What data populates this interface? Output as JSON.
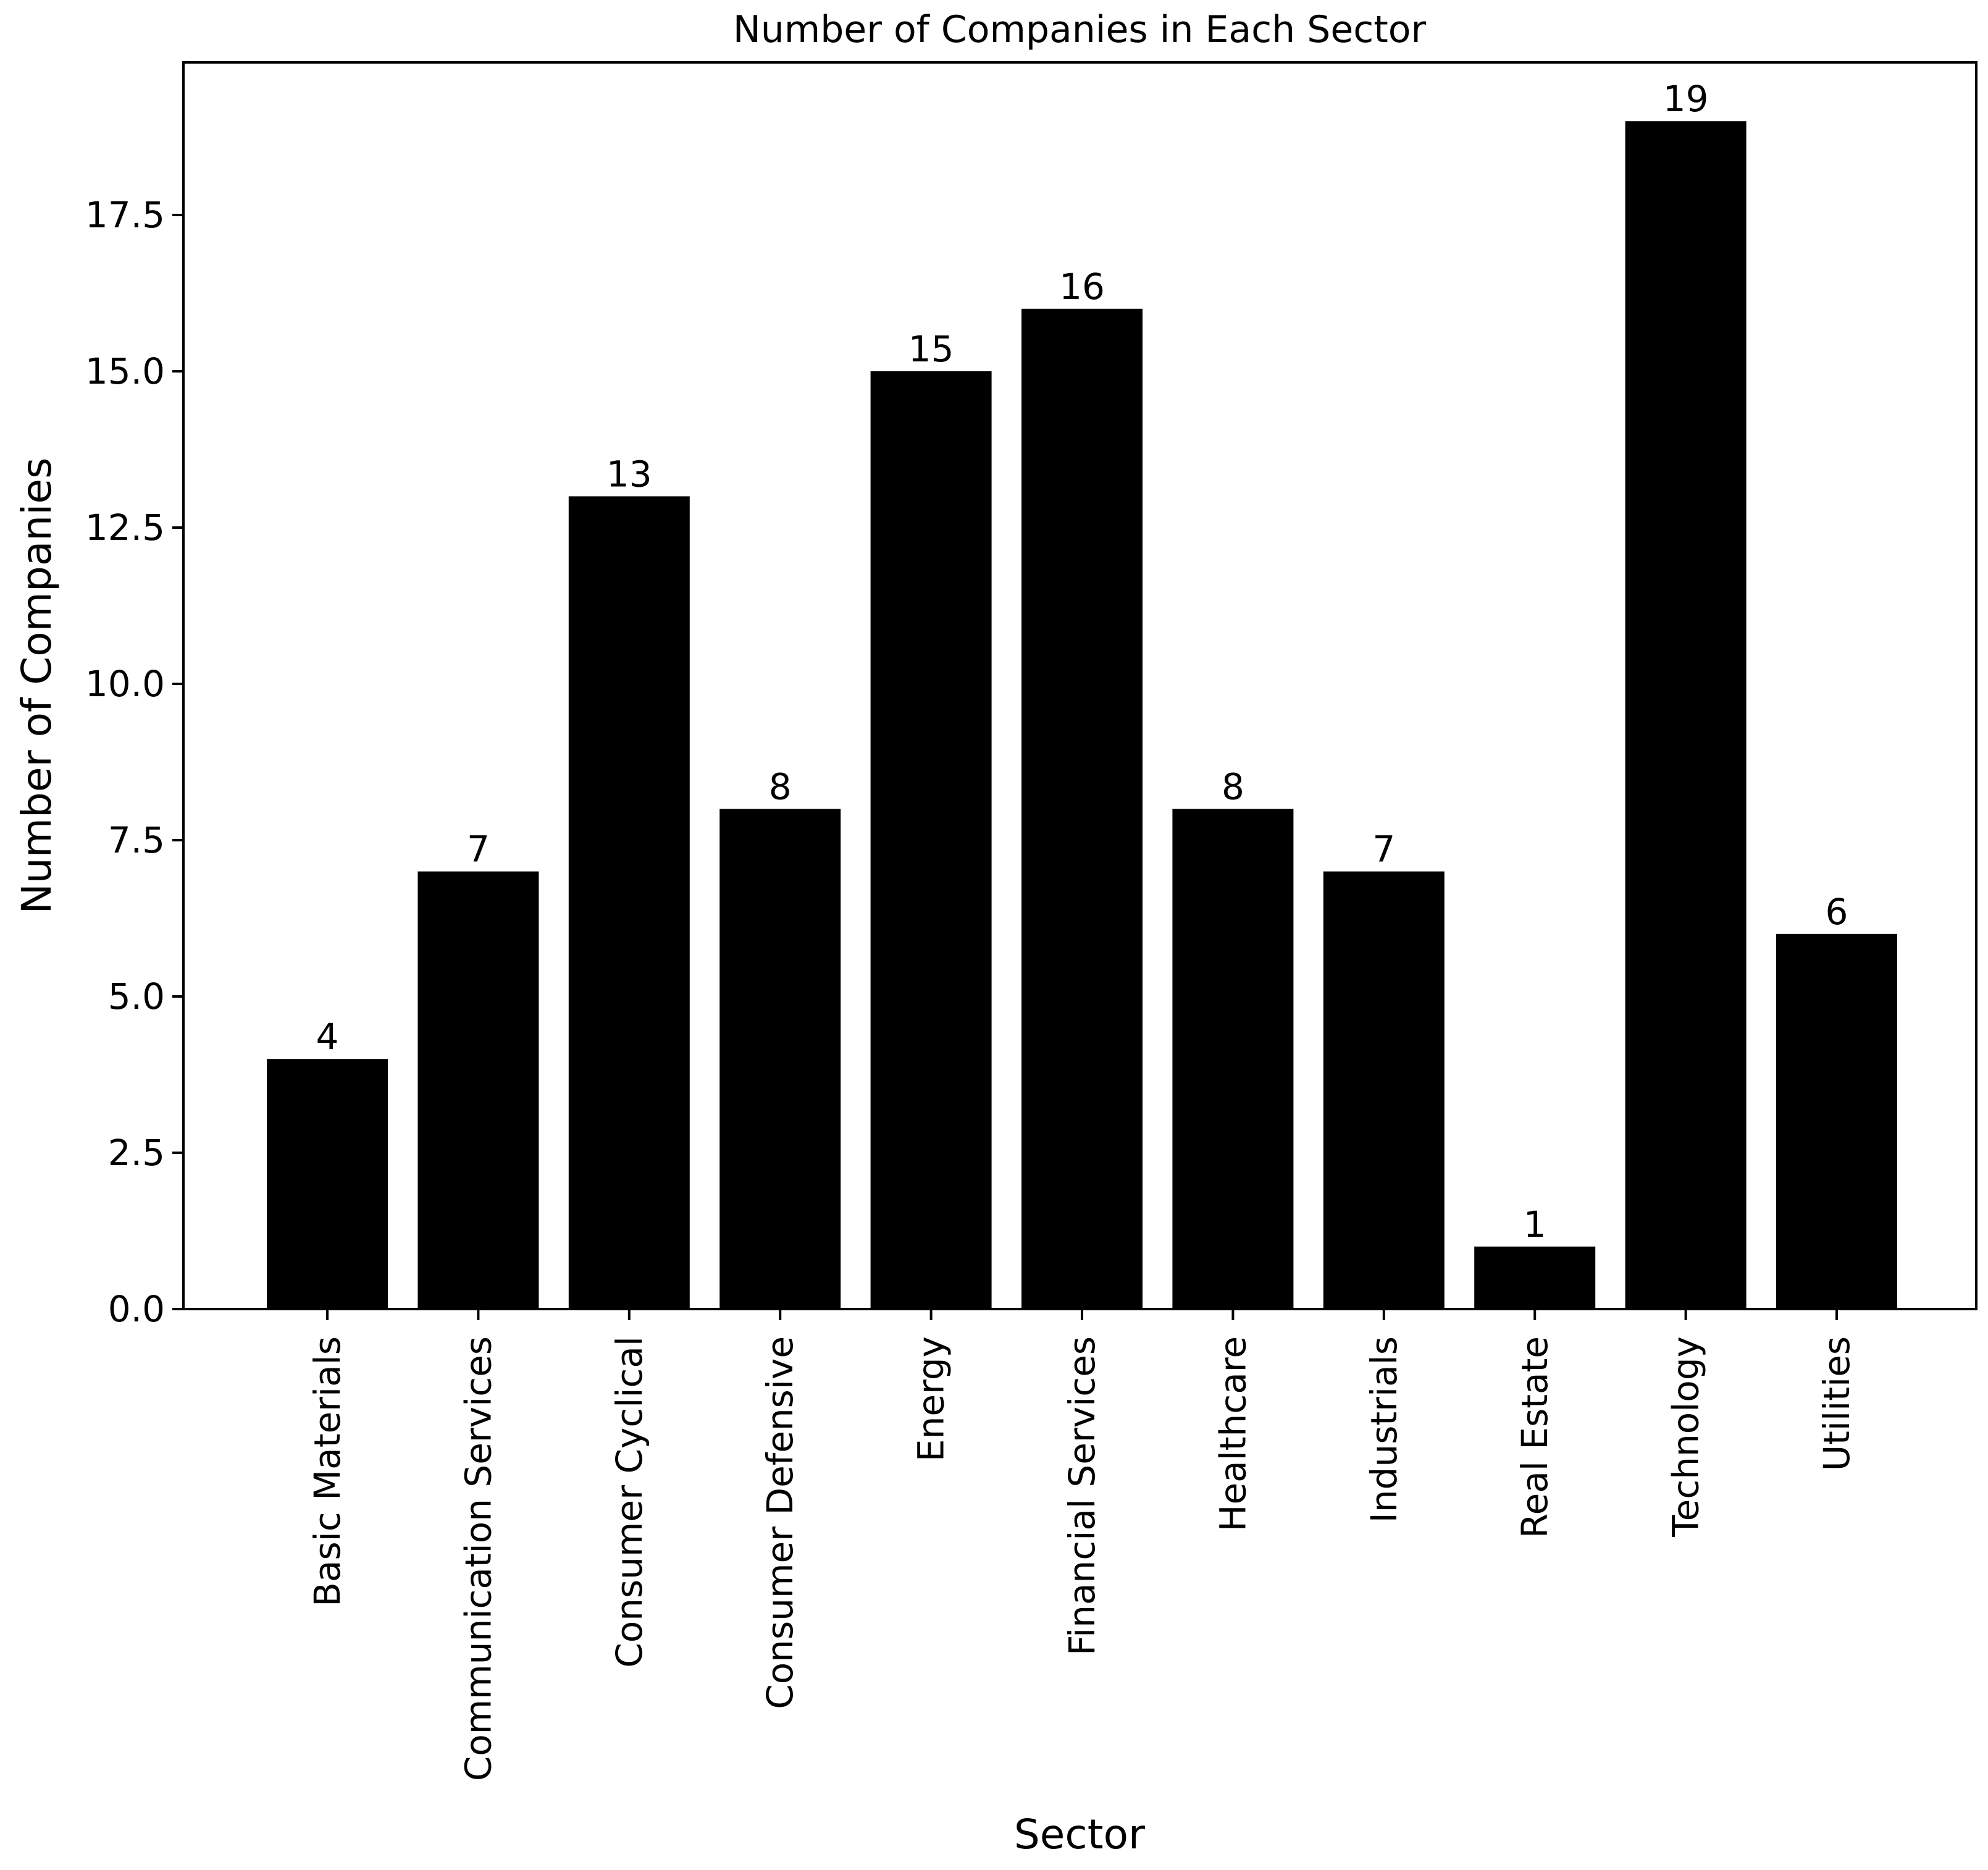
{
  "chart_data": {
    "type": "bar",
    "title": "Number of Companies in Each Sector",
    "xlabel": "Sector",
    "ylabel": "Number of Companies",
    "categories": [
      "Basic Materials",
      "Communication Services",
      "Consumer Cyclical",
      "Consumer Defensive",
      "Energy",
      "Financial Services",
      "Healthcare",
      "Industrials",
      "Real Estate",
      "Technology",
      "Utilities"
    ],
    "values": [
      4,
      7,
      13,
      8,
      15,
      16,
      8,
      7,
      1,
      19,
      6
    ],
    "data_labels": [
      "4",
      "7",
      "13",
      "8",
      "15",
      "16",
      "8",
      "7",
      "1",
      "19",
      "6"
    ],
    "ylim": [
      0,
      20
    ],
    "yticks": [
      0,
      2.5,
      5,
      7.5,
      10,
      12.5,
      15,
      17.5
    ],
    "ytick_labels": [
      "0.0",
      "2.5",
      "5.0",
      "7.5",
      "10.0",
      "12.5",
      "15.0",
      "17.5"
    ],
    "grid": false,
    "legend": "none",
    "bar_color": "#000000"
  }
}
